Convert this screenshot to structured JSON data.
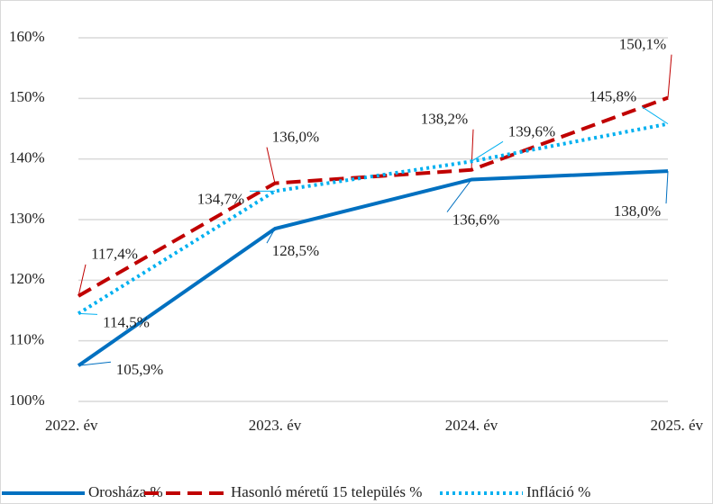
{
  "chart_data": {
    "type": "line",
    "categories": [
      "2022. év",
      "2023. év",
      "2024. év",
      "2025. év"
    ],
    "series": [
      {
        "name": "Orosháza %",
        "color": "#0070c0",
        "dash": "solid",
        "values": [
          105.9,
          128.5,
          136.6,
          138.0
        ],
        "value_labels": [
          "105,9%",
          "128,5%",
          "136,6%",
          "138,0%"
        ]
      },
      {
        "name": "Hasonló méretű 15 település %",
        "color": "#c00000",
        "dash": "dashed",
        "values": [
          117.4,
          136.0,
          138.2,
          150.1
        ],
        "value_labels": [
          "117,4%",
          "136,0%",
          "138,2%",
          "150,1%"
        ]
      },
      {
        "name": "Infláció %",
        "color": "#00b0f0",
        "dash": "dotted",
        "values": [
          114.5,
          134.7,
          139.6,
          145.8
        ],
        "value_labels": [
          "114,5%",
          "134,7%",
          "139,6%",
          "145,8%"
        ]
      }
    ],
    "ylim": [
      100,
      160
    ],
    "yticks": [
      {
        "value": 100,
        "label": "100%"
      },
      {
        "value": 110,
        "label": "110%"
      },
      {
        "value": 120,
        "label": "120%"
      },
      {
        "value": 130,
        "label": "130%"
      },
      {
        "value": 140,
        "label": "140%"
      },
      {
        "value": 150,
        "label": "150%"
      },
      {
        "value": 160,
        "label": "160%"
      }
    ],
    "grid": true,
    "legend": "bottom"
  }
}
